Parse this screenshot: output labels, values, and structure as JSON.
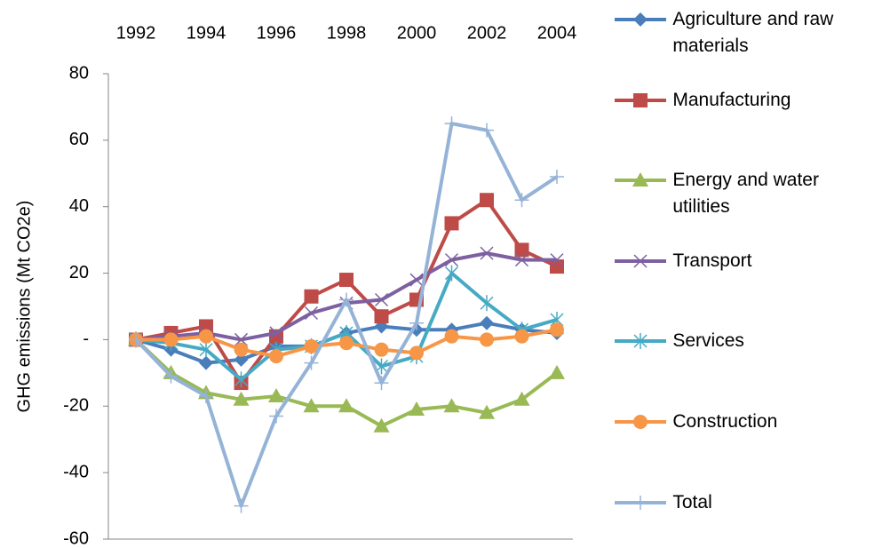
{
  "chart_data": {
    "type": "line",
    "y_label": "GHG emissions (Mt CO2e)",
    "categories": [
      "1992",
      null,
      "1994",
      null,
      "1996",
      null,
      "1998",
      null,
      "2000",
      null,
      "2002",
      null,
      "2004"
    ],
    "ylim": [
      -60,
      80
    ],
    "yticks": [
      -60,
      -40,
      -20,
      {
        "value": 0,
        "label": "-"
      },
      20,
      40,
      60,
      80
    ],
    "grid": false,
    "legend": "right",
    "series": [
      {
        "name": "Agriculture and raw materials",
        "color": "#4a7ebb",
        "marker": "diamond",
        "values": [
          0,
          -3,
          -7,
          -6,
          -2,
          -2,
          2,
          4,
          3,
          3,
          5,
          3,
          2
        ]
      },
      {
        "name": "Manufacturing",
        "color": "#be4b48",
        "marker": "square",
        "values": [
          0,
          2,
          4,
          -13,
          1,
          13,
          18,
          7,
          12,
          35,
          42,
          27,
          22
        ]
      },
      {
        "name": "Energy and water utilities",
        "color": "#98b954",
        "marker": "triangle",
        "values": [
          0,
          -10,
          -16,
          -18,
          -17,
          -20,
          -20,
          -26,
          -21,
          -20,
          -22,
          -18,
          -10
        ]
      },
      {
        "name": "Transport",
        "color": "#7d60a0",
        "marker": "x",
        "values": [
          0,
          1,
          2,
          0,
          2,
          8,
          11,
          12,
          18,
          24,
          26,
          24,
          24
        ]
      },
      {
        "name": "Services",
        "color": "#46aac5",
        "marker": "star",
        "values": [
          0,
          -1,
          -3,
          -12,
          -3,
          -2,
          2,
          -8,
          -5,
          20,
          11,
          3,
          6
        ]
      },
      {
        "name": "Construction",
        "color": "#f79646",
        "marker": "circle",
        "values": [
          0,
          0,
          1,
          -3,
          -5,
          -2,
          -1,
          -3,
          -4,
          1,
          0,
          1,
          3
        ]
      },
      {
        "name": "Total",
        "color": "#95b3d7",
        "marker": "plus",
        "values": [
          0,
          -11,
          -17,
          -50,
          -23,
          -7,
          12,
          -13,
          5,
          65,
          63,
          42,
          49
        ]
      }
    ]
  }
}
